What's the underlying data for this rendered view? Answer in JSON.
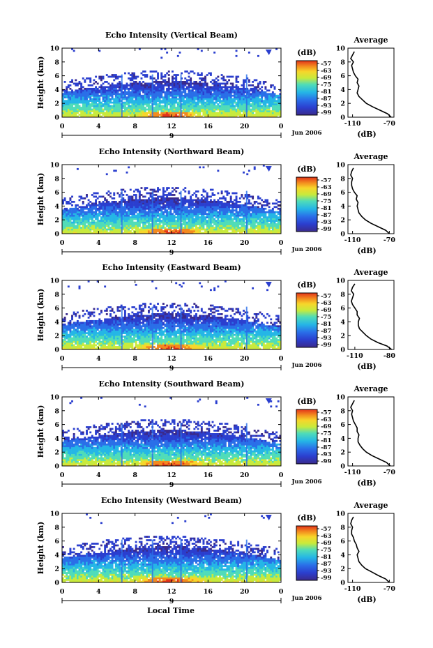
{
  "figure": {
    "x_axis_label": "Local Time"
  },
  "chart_data": [
    {
      "type": "heatmap",
      "title": "Echo Intensity (Vertical Beam)",
      "ylabel": "Height (km)",
      "ylim": [
        0,
        10
      ],
      "yticks": [
        "0",
        "2",
        "4",
        "6",
        "8",
        "10"
      ],
      "xlim": [
        0,
        24
      ],
      "xticks": [
        "0",
        "4",
        "8",
        "12",
        "16",
        "20",
        "0"
      ],
      "date_tick": "9",
      "date_label": "Jun 2006",
      "colorbar": {
        "title": "(dB)",
        "ticks": [
          "-57",
          "-63",
          "-69",
          "-75",
          "-81",
          "-87",
          "-93",
          "-99"
        ]
      },
      "profile": {
        "title": "Average",
        "xlabel": "(dB)",
        "xticks": [
          "-110",
          "-70"
        ],
        "xlim": [
          -115,
          -65
        ],
        "heights": [
          0,
          0.5,
          1,
          1.5,
          2,
          2.5,
          3,
          3.5,
          4,
          4.5,
          5,
          5.5,
          6,
          6.5,
          7,
          7.5,
          8,
          8.5,
          9,
          9.5
        ],
        "values": [
          -68,
          -72,
          -80,
          -88,
          -95,
          -99,
          -103,
          -105,
          -104,
          -103,
          -105,
          -104,
          -107,
          -109,
          -110,
          -111,
          -109,
          -112,
          -110,
          -108
        ]
      }
    },
    {
      "type": "heatmap",
      "title": "Echo Intensity (Northward Beam)",
      "ylabel": "Height (km)",
      "ylim": [
        0,
        10
      ],
      "yticks": [
        "0",
        "2",
        "4",
        "6",
        "8",
        "10"
      ],
      "xlim": [
        0,
        24
      ],
      "xticks": [
        "0",
        "4",
        "8",
        "12",
        "16",
        "20",
        "0"
      ],
      "date_tick": "9",
      "date_label": "Jun 2006",
      "colorbar": {
        "title": "(dB)",
        "ticks": [
          "-57",
          "-63",
          "-69",
          "-75",
          "-81",
          "-87",
          "-93",
          "-99"
        ]
      },
      "profile": {
        "title": "Average",
        "xlabel": "(dB)",
        "xticks": [
          "-110",
          "-70"
        ],
        "xlim": [
          -115,
          -65
        ],
        "heights": [
          0,
          0.5,
          1,
          1.5,
          2,
          2.5,
          3,
          3.5,
          4,
          4.5,
          5,
          5.5,
          6,
          6.5,
          7,
          7.5,
          8,
          8.5,
          9,
          9.5
        ],
        "values": [
          -70,
          -74,
          -82,
          -90,
          -96,
          -100,
          -103,
          -104,
          -105,
          -104,
          -106,
          -105,
          -108,
          -110,
          -111,
          -111,
          -110,
          -112,
          -111,
          -109
        ]
      }
    },
    {
      "type": "heatmap",
      "title": "Echo Intensity (Eastward Beam)",
      "ylabel": "Height (km)",
      "ylim": [
        0,
        10
      ],
      "yticks": [
        "0",
        "2",
        "4",
        "6",
        "8",
        "10"
      ],
      "xlim": [
        0,
        24
      ],
      "xticks": [
        "0",
        "4",
        "8",
        "12",
        "16",
        "20",
        "0"
      ],
      "date_tick": "9",
      "date_label": "Jun 2006",
      "colorbar": {
        "title": "(dB)",
        "ticks": [
          "-57",
          "-63",
          "-69",
          "-75",
          "-81",
          "-87",
          "-93",
          "-99"
        ]
      },
      "profile": {
        "title": "Average",
        "xlabel": "(dB)",
        "xticks": [
          "-110",
          "-80"
        ],
        "xlim": [
          -116,
          -76
        ],
        "heights": [
          0,
          0.5,
          1,
          1.5,
          2,
          2.5,
          3,
          3.5,
          4,
          4.5,
          5,
          5.5,
          6,
          6.5,
          7,
          7.5,
          8,
          8.5,
          9,
          9.5
        ],
        "values": [
          -78,
          -82,
          -90,
          -96,
          -100,
          -103,
          -106,
          -107,
          -107,
          -106,
          -108,
          -108,
          -110,
          -112,
          -113,
          -112,
          -111,
          -113,
          -112,
          -110
        ]
      }
    },
    {
      "type": "heatmap",
      "title": "Echo Intensity (Southward Beam)",
      "ylabel": "Height (km)",
      "ylim": [
        0,
        10
      ],
      "yticks": [
        "0",
        "2",
        "4",
        "6",
        "8",
        "10"
      ],
      "xlim": [
        0,
        24
      ],
      "xticks": [
        "0",
        "4",
        "8",
        "12",
        "16",
        "20",
        "0"
      ],
      "date_tick": "9",
      "date_label": "Jun 2006",
      "colorbar": {
        "title": "(dB)",
        "ticks": [
          "-57",
          "-63",
          "-69",
          "-75",
          "-81",
          "-87",
          "-93",
          "-99"
        ]
      },
      "profile": {
        "title": "Average",
        "xlabel": "(dB)",
        "xticks": [
          "-110",
          "-70"
        ],
        "xlim": [
          -115,
          -65
        ],
        "heights": [
          0,
          0.5,
          1,
          1.5,
          2,
          2.5,
          3,
          3.5,
          4,
          4.5,
          5,
          5.5,
          6,
          6.5,
          7,
          7.5,
          8,
          8.5,
          9,
          9.5
        ],
        "values": [
          -69,
          -73,
          -81,
          -89,
          -95,
          -99,
          -102,
          -104,
          -104,
          -103,
          -105,
          -105,
          -107,
          -109,
          -110,
          -111,
          -110,
          -112,
          -110,
          -108
        ]
      }
    },
    {
      "type": "heatmap",
      "title": "Echo Intensity (Westward Beam)",
      "ylabel": "Height (km)",
      "ylim": [
        0,
        10
      ],
      "yticks": [
        "0",
        "2",
        "4",
        "6",
        "8",
        "10"
      ],
      "xlim": [
        0,
        24
      ],
      "xticks": [
        "0",
        "4",
        "8",
        "12",
        "16",
        "20",
        "0"
      ],
      "date_tick": "9",
      "date_label": "Jun 2006",
      "colorbar": {
        "title": "(dB)",
        "ticks": [
          "-57",
          "-63",
          "-69",
          "-75",
          "-81",
          "-87",
          "-93",
          "-99"
        ]
      },
      "profile": {
        "title": "Average",
        "xlabel": "(dB)",
        "xticks": [
          "-110",
          "-70"
        ],
        "xlim": [
          -115,
          -65
        ],
        "heights": [
          0,
          0.5,
          1,
          1.5,
          2,
          2.5,
          3,
          3.5,
          4,
          4.5,
          5,
          5.5,
          6,
          6.5,
          7,
          7.5,
          8,
          8.5,
          9,
          9.5
        ],
        "values": [
          -70,
          -74,
          -82,
          -89,
          -96,
          -100,
          -103,
          -104,
          -105,
          -103,
          -105,
          -106,
          -108,
          -109,
          -111,
          -111,
          -110,
          -112,
          -111,
          -109
        ]
      }
    }
  ]
}
